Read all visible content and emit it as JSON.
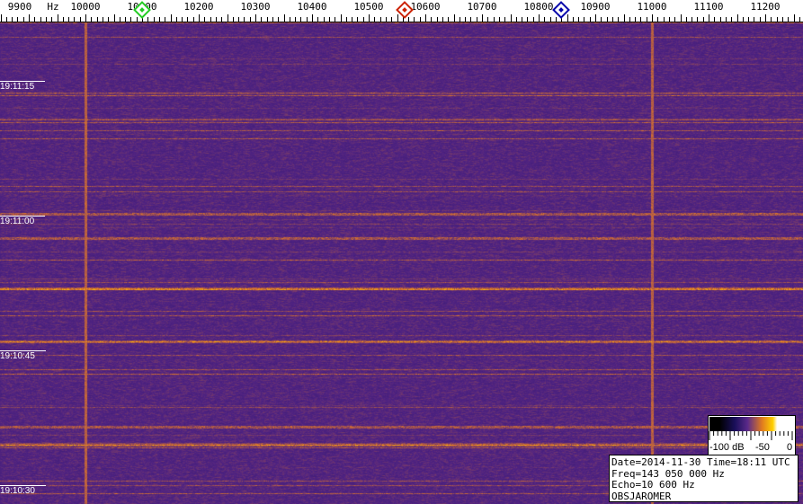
{
  "chart_data": {
    "type": "heatmap",
    "title": "",
    "x_axis": {
      "unit_label": "Hz",
      "range": [
        9850,
        11270
      ],
      "tick_labels": [
        "9900",
        "10000",
        "10100",
        "10200",
        "10300",
        "10400",
        "10500",
        "10600",
        "10700",
        "10800",
        "10900",
        "11000",
        "11100",
        "11200"
      ],
      "minor_tick_step": 10
    },
    "y_axis": {
      "tick_labels": [
        "19:11:15",
        "19:11:00",
        "19:10:45",
        "19:10:30"
      ],
      "direction": "time decreasing downward"
    },
    "colorbar": {
      "labels": [
        "-100 dB",
        "-50",
        "0"
      ],
      "range_db": [
        -100,
        0
      ],
      "colormap": [
        "#000000",
        "#1a0f5a",
        "#5a2a8a",
        "#e07a20",
        "#ffd000",
        "#ffffff"
      ]
    },
    "carriers_hz": [
      10000,
      11000
    ],
    "markers": [
      {
        "freq_hz": 10100,
        "color": "#22cc22"
      },
      {
        "freq_hz": 10563,
        "color": "#cc2200"
      },
      {
        "freq_hz": 10840,
        "color": "#0000aa"
      }
    ],
    "background_level_db": -80
  },
  "info": {
    "line1": "Date=2014-11-30 Time=18:11 UTC",
    "line2": "Freq=143 050 000 Hz",
    "line3": "Echo=10 600 Hz",
    "line4": "OBSJAROMER"
  }
}
